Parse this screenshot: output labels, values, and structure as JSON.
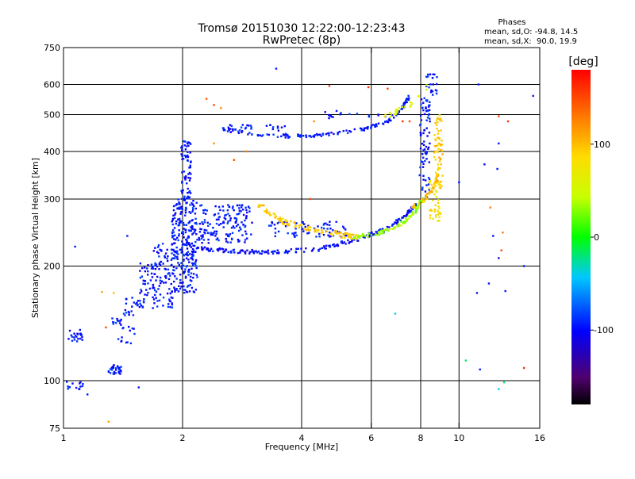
{
  "chart_data": {
    "type": "scatter",
    "title": "Tromsø 20151030 12:22:00-12:23:43",
    "subtitle": "RwPretec (8p)",
    "xlabel": "Frequency [MHz]",
    "ylabel": "Stationary phase Virtual Height [km]",
    "x_scale": "log",
    "y_scale": "log",
    "xlim": [
      1,
      16
    ],
    "ylim": [
      75,
      750
    ],
    "x_ticks": [
      1,
      2,
      4,
      6,
      8,
      10,
      16
    ],
    "y_ticks": [
      75,
      100,
      200,
      300,
      400,
      500,
      600,
      750
    ],
    "x_grid": [
      2,
      4,
      6,
      8,
      10
    ],
    "y_grid": [
      100,
      200,
      300,
      400,
      500,
      600
    ],
    "grid": true,
    "phase_box": {
      "title": "Phases",
      "line1": "mean, sd,O: -94.8, 14.5",
      "line2": "mean, sd,X:  90.0, 19.9"
    },
    "colorbar": {
      "label": "[deg]",
      "range": [
        -180,
        180
      ],
      "ticks": [
        100,
        0,
        -100
      ],
      "tick_labels": [
        "100",
        "0",
        "-100"
      ],
      "placement": "right"
    },
    "clusters": [
      {
        "f": [
          1.0,
          1.12
        ],
        "h": [
          94,
          100
        ],
        "phase": -95,
        "n": 14
      },
      {
        "f": [
          1.03,
          1.12
        ],
        "h": [
          126,
          136
        ],
        "phase": -95,
        "n": 22
      },
      {
        "f": [
          1.3,
          1.42
        ],
        "h": [
          104,
          110
        ],
        "phase": -95,
        "n": 30
      },
      {
        "f": [
          1.3,
          1.4
        ],
        "h": [
          140,
          146
        ],
        "phase": -95,
        "n": 12
      },
      {
        "f": [
          1.37,
          1.52
        ],
        "h": [
          125,
          140
        ],
        "phase": -95,
        "n": 14
      },
      {
        "f": [
          1.42,
          1.6
        ],
        "h": [
          148,
          168
        ],
        "phase": -95,
        "n": 30
      },
      {
        "f": [
          1.56,
          1.72
        ],
        "h": [
          165,
          205
        ],
        "phase": -95,
        "n": 40
      },
      {
        "f": [
          1.68,
          1.9
        ],
        "h": [
          155,
          230
        ],
        "phase": -95,
        "n": 90
      },
      {
        "f": [
          1.88,
          2.18
        ],
        "h": [
          170,
          300
        ],
        "phase": -95,
        "n": 260
      },
      {
        "f": [
          1.98,
          2.1
        ],
        "h": [
          300,
          430
        ],
        "phase": -95,
        "n": 70
      },
      {
        "f": [
          2.2,
          3.0
        ],
        "h": [
          230,
          290
        ],
        "phase": -95,
        "n": 150
      },
      {
        "f": [
          3.3,
          5.2
        ],
        "h": [
          238,
          262
        ],
        "phase": -95,
        "n": 70
      },
      {
        "f": [
          2.5,
          3.0
        ],
        "h": [
          455,
          470
        ],
        "phase": -95,
        "n": 16
      },
      {
        "f": [
          3.2,
          3.7
        ],
        "h": [
          440,
          470
        ],
        "phase": -95,
        "n": 12
      },
      {
        "f": [
          7.95,
          8.45
        ],
        "h": [
          300,
          560
        ],
        "phase": -95,
        "n": 80
      },
      {
        "f": [
          8.2,
          8.8
        ],
        "h": [
          560,
          640
        ],
        "phase": -95,
        "n": 22
      },
      {
        "f": [
          8.65,
          9.1
        ],
        "h": [
          320,
          500
        ],
        "phase": 95,
        "n": 70
      },
      {
        "f": [
          8.4,
          9.0
        ],
        "h": [
          260,
          340
        ],
        "phase": 80,
        "n": 40
      }
    ],
    "curves": [
      {
        "f": [
          2.0,
          2.3,
          2.8,
          3.5,
          4.5,
          5.5,
          6.5,
          7.2,
          7.8
        ],
        "h": [
          230,
          222,
          218,
          218,
          222,
          235,
          250,
          268,
          290
        ],
        "phase": -100,
        "n": 220,
        "jitter": 0.012
      },
      {
        "f": [
          3.1,
          3.6,
          4.2,
          5.0,
          5.6
        ],
        "h": [
          290,
          262,
          250,
          242,
          238
        ],
        "phase": 95,
        "n": 110,
        "jitter": 0.016
      },
      {
        "f": [
          5.4,
          6.3,
          7.0,
          7.6,
          8.1
        ],
        "h": [
          238,
          244,
          255,
          272,
          300
        ],
        "phase": 30,
        "n": 90,
        "jitter": 0.012
      },
      {
        "f": [
          7.6,
          8.2,
          8.6,
          8.8
        ],
        "h": [
          285,
          300,
          318,
          340
        ],
        "phase": 100,
        "n": 40,
        "jitter": 0.012
      },
      {
        "f": [
          2.5,
          3.0,
          3.6,
          4.2,
          5.0,
          5.8,
          6.5,
          7.1,
          7.5
        ],
        "h": [
          458,
          446,
          438,
          440,
          448,
          460,
          475,
          510,
          560
        ],
        "phase": -95,
        "n": 140,
        "jitter": 0.01
      },
      {
        "f": [
          4.6,
          5.2,
          6.0,
          6.8
        ],
        "h": [
          498,
          505,
          500,
          495
        ],
        "phase": -95,
        "n": 18,
        "jitter": 0.02
      },
      {
        "f": [
          6.4,
          7.0,
          7.7,
          8.4
        ],
        "h": [
          490,
          510,
          540,
          600
        ],
        "phase": 60,
        "n": 24,
        "jitter": 0.014
      }
    ],
    "points": [
      [
        1.45,
        240,
        -95
      ],
      [
        1.55,
        96,
        -95
      ],
      [
        1.15,
        92,
        -95
      ],
      [
        1.07,
        225,
        -95
      ],
      [
        1.3,
        78,
        110
      ],
      [
        1.25,
        171,
        110
      ],
      [
        1.34,
        170,
        100
      ],
      [
        1.28,
        138,
        150
      ],
      [
        3.45,
        660,
        -95
      ],
      [
        11.2,
        600,
        -95
      ],
      [
        15.4,
        560,
        -95
      ],
      [
        11.6,
        370,
        -100
      ],
      [
        12.6,
        495,
        150
      ],
      [
        13.3,
        480,
        160
      ],
      [
        12.6,
        420,
        -95
      ],
      [
        12.5,
        360,
        -95
      ],
      [
        12.0,
        285,
        130
      ],
      [
        12.9,
        245,
        130
      ],
      [
        12.8,
        220,
        150
      ],
      [
        12.6,
        210,
        -120
      ],
      [
        12.2,
        240,
        -95
      ],
      [
        14.6,
        200,
        -95
      ],
      [
        11.9,
        180,
        -95
      ],
      [
        13.1,
        172,
        -95
      ],
      [
        11.1,
        170,
        -95
      ],
      [
        10.0,
        332,
        -95
      ],
      [
        10.4,
        113,
        -20
      ],
      [
        14.6,
        108,
        160
      ],
      [
        11.3,
        107,
        -95
      ],
      [
        13.0,
        99,
        -20
      ],
      [
        12.6,
        95,
        -40
      ],
      [
        2.3,
        550,
        140
      ],
      [
        2.4,
        530,
        150
      ],
      [
        2.5,
        520,
        120
      ],
      [
        2.7,
        380,
        150
      ],
      [
        4.3,
        480,
        120
      ],
      [
        4.7,
        595,
        150
      ],
      [
        5.9,
        590,
        160
      ],
      [
        6.6,
        585,
        150
      ],
      [
        7.2,
        480,
        160
      ],
      [
        7.5,
        480,
        150
      ],
      [
        6.9,
        150,
        -40
      ],
      [
        4.2,
        300,
        150
      ],
      [
        2.4,
        420,
        120
      ],
      [
        2.9,
        400,
        130
      ]
    ]
  }
}
